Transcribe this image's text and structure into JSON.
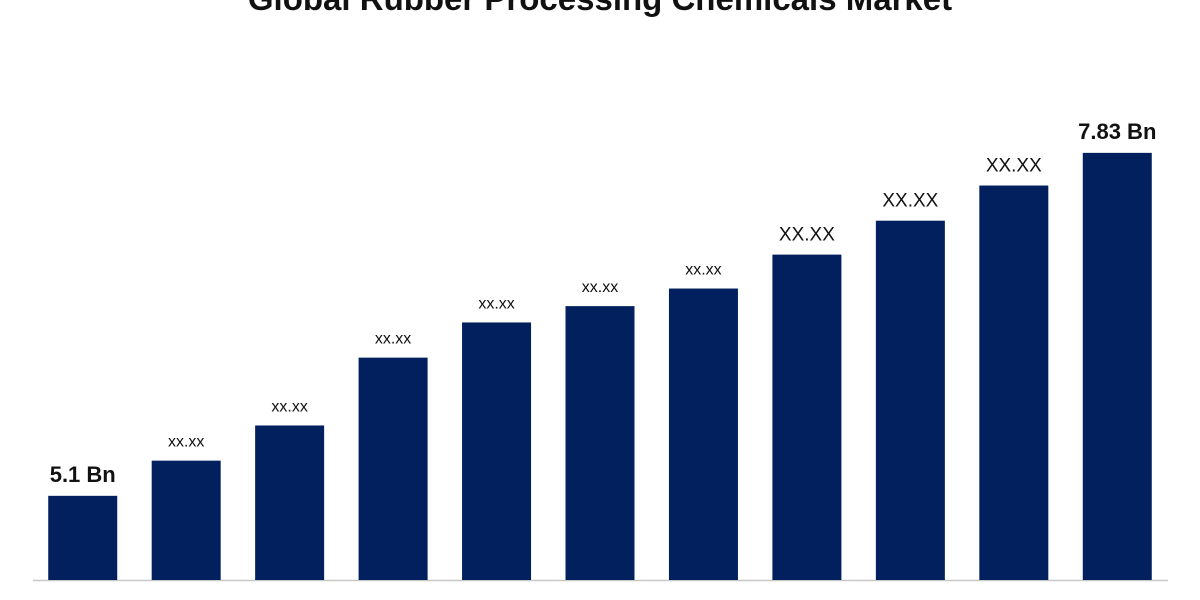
{
  "chart_data": {
    "type": "bar",
    "title": "Global Rubber Processing Chemicals Market",
    "categories": [
      null,
      null,
      null,
      null,
      null,
      null,
      null,
      null,
      null,
      null,
      null
    ],
    "values": [
      5.1,
      5.38,
      5.66,
      6.2,
      6.48,
      6.61,
      6.75,
      7.02,
      7.29,
      7.57,
      7.83
    ],
    "value_labels": [
      "5.1 Bn",
      "xx.xx",
      "xx.xx",
      "xx.xx",
      "xx.xx",
      "xx.xx",
      "xx.xx",
      "XX.XX",
      "XX.XX",
      "XX.XX",
      "7.83 Bn"
    ],
    "color": "#02205e",
    "ylim": [
      4.43,
      8.0
    ]
  }
}
